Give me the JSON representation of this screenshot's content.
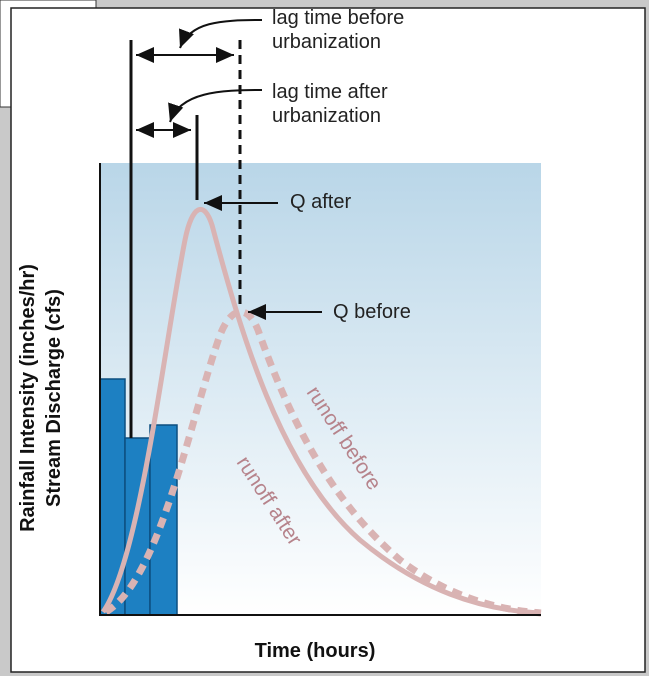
{
  "labels": {
    "lag_before": [
      "lag time before",
      "urbanization"
    ],
    "lag_after": [
      "lag time after",
      "urbanization"
    ],
    "q_after": "Q after",
    "q_before": "Q before",
    "runoff_before": "runoff before",
    "runoff_after": "runoff after",
    "y_axis": [
      "Rainfall Intensity (inches/hr)",
      "Stream Discharge (cfs)"
    ],
    "x_axis": "Time (hours)"
  }
}
